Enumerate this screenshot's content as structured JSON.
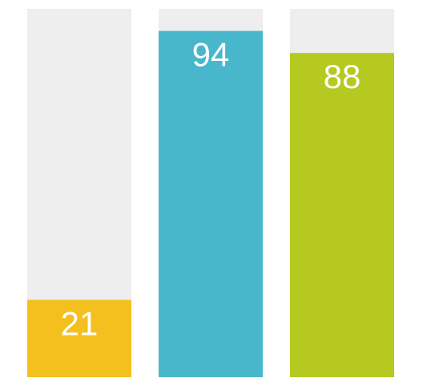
{
  "chart_data": {
    "type": "bar",
    "ylim": [
      0,
      100
    ],
    "grid": false,
    "series": [
      {
        "value": 21,
        "label": "21",
        "color": "#f4c01e"
      },
      {
        "value": 94,
        "label": "94",
        "color": "#48b7cc"
      },
      {
        "value": 88,
        "label": "88",
        "color": "#b5c920"
      }
    ],
    "track_color": "#eeeeee"
  }
}
